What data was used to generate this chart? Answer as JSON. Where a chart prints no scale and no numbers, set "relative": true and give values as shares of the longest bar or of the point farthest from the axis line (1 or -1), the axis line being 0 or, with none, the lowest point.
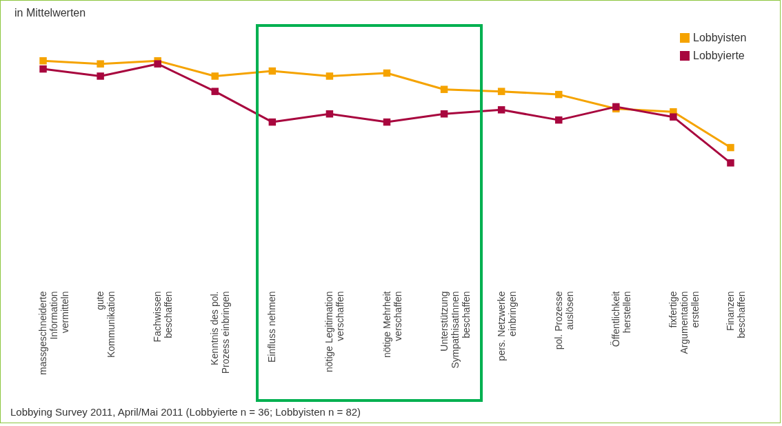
{
  "chart_data": {
    "type": "line",
    "relative": true,
    "title": "in Mittelwerten",
    "categories": [
      "massgeschneiderte\nInformation\nvermitteln",
      "gute\nKommunikation",
      "Fachwissen\nbeschaffen",
      "Kenntnis des pol.\nProzess einbringen",
      "Einfluss nehmen",
      "nötige Legitimation\nverschaffen",
      "nötige Mehrheit\nverschaffen",
      "Unterstützung\nSympathisatInnen\nbeschaffen",
      "pers. Netzwerke\neinbringen",
      "pol. Prozesse\nauslösen",
      "Öffentlichkeit\nherstellen",
      "fixfertige\nArgumentation\nerstellen",
      "Finanzen\nbeschaffen"
    ],
    "series": [
      {
        "name": "Lobbyisten",
        "color": "#f5a300",
        "values": [
          1.0,
          0.97,
          1.0,
          0.85,
          0.9,
          0.85,
          0.88,
          0.72,
          0.7,
          0.67,
          0.53,
          0.5,
          0.15
        ]
      },
      {
        "name": "Lobbyierte",
        "color": "#a8063e",
        "values": [
          0.92,
          0.85,
          0.97,
          0.7,
          0.4,
          0.48,
          0.4,
          0.48,
          0.52,
          0.42,
          0.55,
          0.45,
          0.0
        ]
      }
    ],
    "marker": "square",
    "line_style": "solid",
    "grid": false,
    "legend": "top right",
    "annotations": [
      "Lobbying Survey 2011, April/Mai 2011 (Lobbyierte n = 36; Lobbyisten n = 82)"
    ]
  }
}
